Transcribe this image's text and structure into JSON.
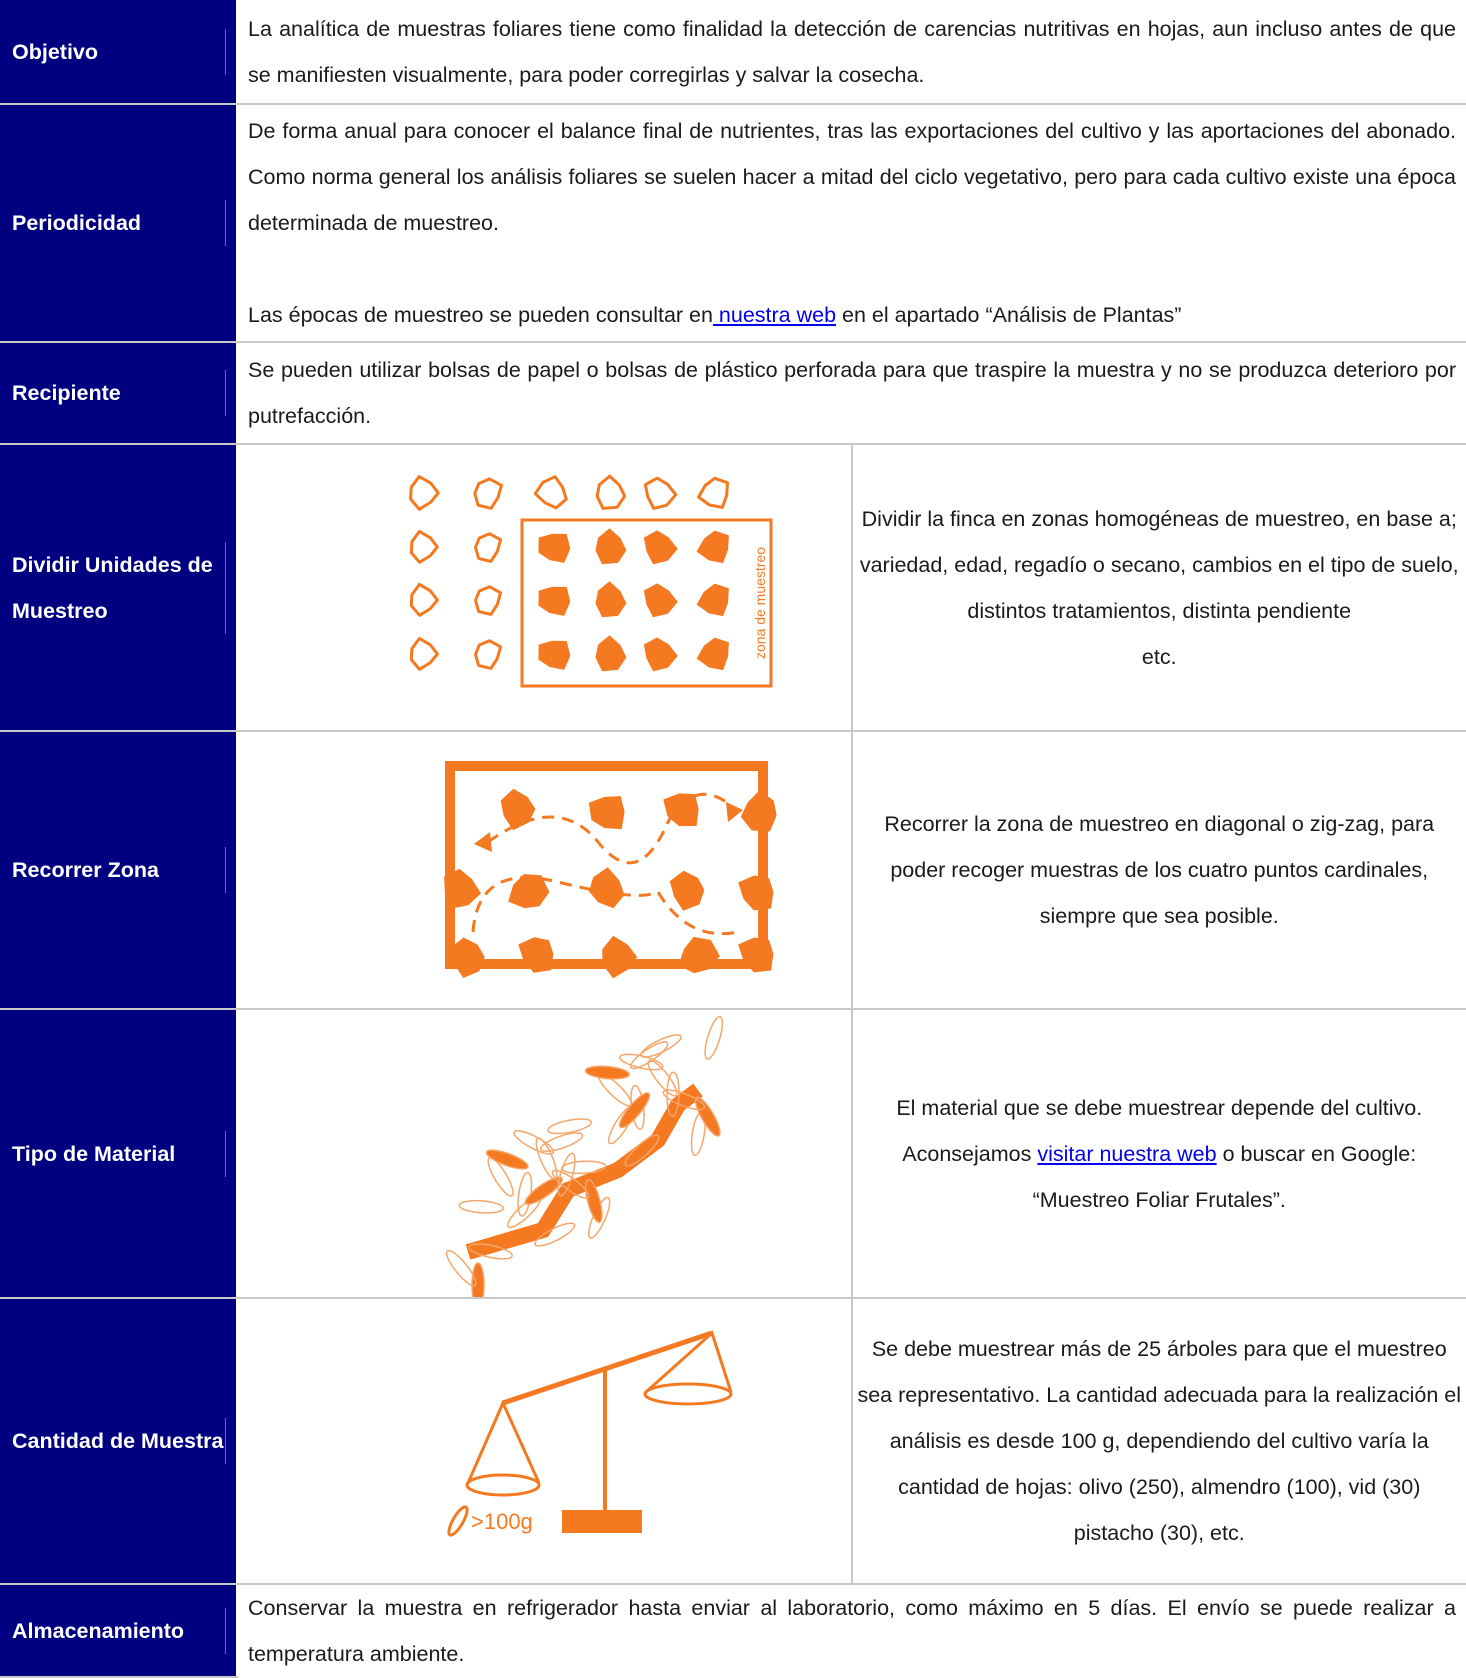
{
  "table": {
    "rows": [
      {
        "label": "Objetivo",
        "text": "La analítica de muestras foliares tiene como finalidad la detección de carencias nutritivas en hojas, aun incluso antes de que se manifiesten visualmente, para poder corregirlas y salvar la cosecha."
      },
      {
        "label": "Periodicidad",
        "text": "De forma anual para conocer el balance final de nutrientes, tras las exportaciones del cultivo y las aportaciones del abonado. Como norma general los análisis foliares se suelen hacer a mitad del ciclo vegetativo, pero para cada cultivo existe una época determinada de muestreo.",
        "note": [
          "Las épocas de muestreo se pueden consultar en",
          " nuestra web",
          " en el apartado “Análisis de Plantas”"
        ]
      },
      {
        "label": "Recipiente",
        "text": "Se pueden utilizar bolsas de papel o bolsas de plástico perforada para que traspire la muestra y no se produzca deterioro por putrefacción."
      },
      {
        "label": "Dividir Unidades de Muestreo",
        "image_text": "zona de muestreo",
        "text": [
          "Dividir la finca en zonas homogéneas de muestreo, en base a; variedad, edad, regadío o secano, cambios en el tipo de suelo, distintos tratamientos, distinta pendiente",
          "etc."
        ]
      },
      {
        "label": "Recorrer Zona",
        "text": "Recorrer la zona de muestreo en diagonal o zig-zag, para poder recoger muestras de los cuatro puntos cardinales, siempre que sea posible."
      },
      {
        "label": "Tipo de Material",
        "text": [
          "El material que se debe muestrear depende del cultivo. Aconsejamos ",
          "visitar nuestra web",
          " o buscar en Google: “Muestreo Foliar Frutales”."
        ]
      },
      {
        "label": "Cantidad de Muestra",
        "image_text": ">100g",
        "text": "Se debe muestrear más de 25 árboles para que el muestreo sea representativo. La cantidad adecuada para la realización el análisis es desde 100 g, dependiendo del cultivo varía la cantidad de hojas: olivo (250), almendro (100), vid (30) pistacho (30), etc."
      },
      {
        "label": "Almacenamiento",
        "text": "Conservar la muestra en refrigerador hasta enviar al laboratorio, como máximo en 5 días. El envío se puede realizar a temperatura ambiente."
      }
    ]
  }
}
